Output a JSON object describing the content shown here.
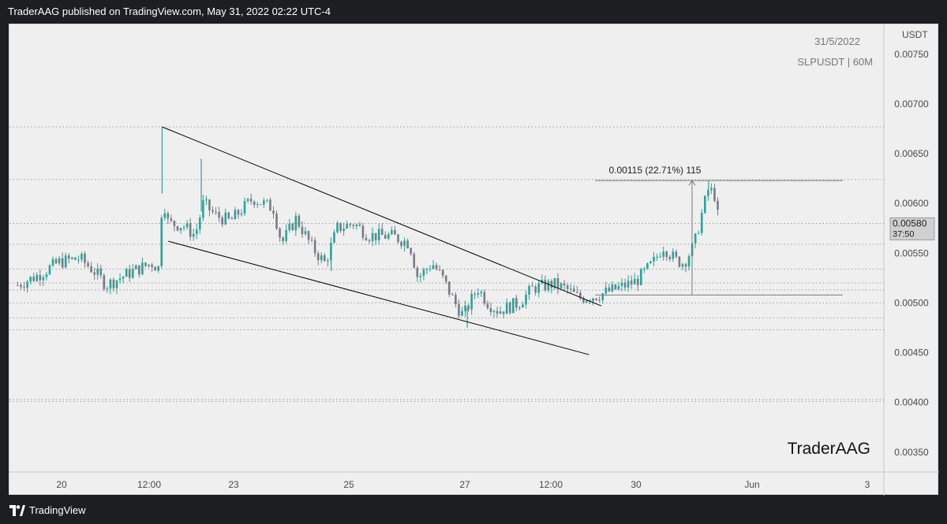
{
  "header": {
    "publish_text": "TraderAAG published on TradingView.com, May 31, 2022 02:22 UTC-4"
  },
  "footer": {
    "brand": "TradingView"
  },
  "chart_data": {
    "type": "candlestick",
    "info_date": "31/5/2022",
    "symbol": "SLPUSDT | 60M",
    "watermark": "TraderAAG",
    "y_unit": "USDT",
    "ylim": [
      0.0033,
      0.0078
    ],
    "y_ticks": [
      "0.00350",
      "0.00400",
      "0.00450",
      "0.00500",
      "0.00550",
      "0.00600",
      "0.00650",
      "0.00700",
      "0.00750"
    ],
    "x_ticks": [
      "20",
      "12:00",
      "23",
      "25",
      "27",
      "12:00",
      "30",
      "Jun",
      "3"
    ],
    "current_price": "0.00580",
    "countdown": "37:50",
    "price_levels": [
      0.00403,
      0.00401,
      0.00473,
      0.00485,
      0.005,
      0.00513,
      0.0052,
      0.00534,
      0.00559,
      0.0058,
      0.00624,
      0.00677
    ],
    "measure_label": "0.00115 (22.71%) 115",
    "measure_low": 0.00508,
    "measure_high": 0.00623,
    "colors": {
      "up": "#26a69a",
      "down": "#787b86",
      "line": "#000000",
      "level": "#9a9a9a"
    },
    "anchors": [
      {
        "x": 0.0,
        "y": 0.00518
      },
      {
        "x": 1.0,
        "y": 0.00528
      },
      {
        "x": 2.0,
        "y": 0.00541
      },
      {
        "x": 3.0,
        "y": 0.00545
      },
      {
        "x": 3.7,
        "y": 0.00532
      },
      {
        "x": 4.3,
        "y": 0.00518
      },
      {
        "x": 5.5,
        "y": 0.00531
      },
      {
        "x": 6.5,
        "y": 0.0054
      },
      {
        "x": 6.9,
        "y": 0.00534
      },
      {
        "x": 7.0,
        "y": 0.0061
      },
      {
        "x": 7.3,
        "y": 0.0058
      },
      {
        "x": 8.0,
        "y": 0.00578
      },
      {
        "x": 8.6,
        "y": 0.00568
      },
      {
        "x": 9.0,
        "y": 0.006
      },
      {
        "x": 9.6,
        "y": 0.00588
      },
      {
        "x": 10.3,
        "y": 0.00582
      },
      {
        "x": 11.4,
        "y": 0.00605
      },
      {
        "x": 12.4,
        "y": 0.00595
      },
      {
        "x": 12.8,
        "y": 0.0056
      },
      {
        "x": 13.5,
        "y": 0.00585
      },
      {
        "x": 14.3,
        "y": 0.00555
      },
      {
        "x": 14.9,
        "y": 0.0054
      },
      {
        "x": 15.5,
        "y": 0.00575
      },
      {
        "x": 16.3,
        "y": 0.0058
      },
      {
        "x": 17.0,
        "y": 0.00568
      },
      {
        "x": 18.2,
        "y": 0.00567
      },
      {
        "x": 19.0,
        "y": 0.0056
      },
      {
        "x": 19.4,
        "y": 0.00525
      },
      {
        "x": 20.1,
        "y": 0.0054
      },
      {
        "x": 20.6,
        "y": 0.00525
      },
      {
        "x": 21.2,
        "y": 0.005
      },
      {
        "x": 21.6,
        "y": 0.00487
      },
      {
        "x": 22.3,
        "y": 0.00515
      },
      {
        "x": 22.8,
        "y": 0.005
      },
      {
        "x": 23.3,
        "y": 0.00492
      },
      {
        "x": 24.3,
        "y": 0.005
      },
      {
        "x": 25.0,
        "y": 0.00515
      },
      {
        "x": 26.0,
        "y": 0.00519
      },
      {
        "x": 26.6,
        "y": 0.00514
      },
      {
        "x": 27.2,
        "y": 0.00505
      },
      {
        "x": 28.0,
        "y": 0.00507
      },
      {
        "x": 29.0,
        "y": 0.00514
      },
      {
        "x": 30.0,
        "y": 0.00522
      },
      {
        "x": 30.8,
        "y": 0.0054
      },
      {
        "x": 31.3,
        "y": 0.00557
      },
      {
        "x": 31.9,
        "y": 0.00543
      },
      {
        "x": 32.3,
        "y": 0.0054
      },
      {
        "x": 32.8,
        "y": 0.00558
      },
      {
        "x": 33.2,
        "y": 0.00592
      },
      {
        "x": 33.5,
        "y": 0.00615
      },
      {
        "x": 33.8,
        "y": 0.00608
      },
      {
        "x": 34.0,
        "y": 0.0058
      }
    ],
    "spikes": [
      {
        "x": 7.0,
        "y": 0.00677
      },
      {
        "x": 8.9,
        "y": 0.00645
      },
      {
        "x": 15.2,
        "y": 0.00532
      },
      {
        "x": 21.8,
        "y": 0.00475
      },
      {
        "x": 33.5,
        "y": 0.00623
      }
    ],
    "trendlines": [
      {
        "x1": 7.0,
        "y1": 0.00677,
        "x2": 28.3,
        "y2": 0.00497
      },
      {
        "x1": 7.3,
        "y1": 0.00562,
        "x2": 27.7,
        "y2": 0.00448
      }
    ],
    "x_range": [
      -0.4,
      42.0
    ]
  }
}
